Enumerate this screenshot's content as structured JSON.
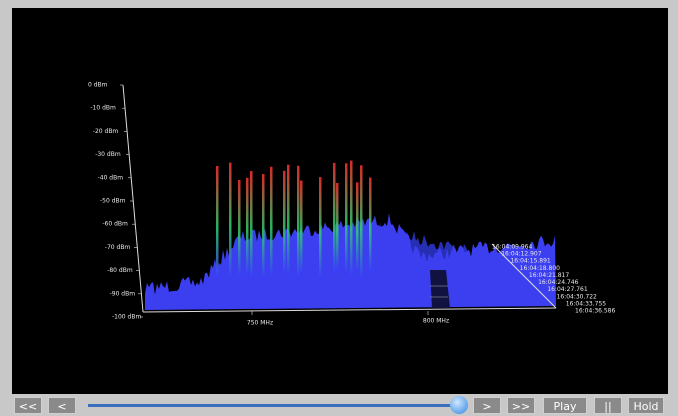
{
  "y_axis_labels": [
    "0 dBm",
    "-10 dBm",
    "-20 dBm",
    "-30 dBm",
    "-40 dBm",
    "-50 dBm",
    "-60 dBm",
    "-70 dBm",
    "-80 dBm",
    "-90 dBm",
    "-100 dBm"
  ],
  "x_axis_labels": [
    "750 MHz",
    "800 MHz"
  ],
  "time_labels": [
    "16:04:09.964",
    "16:04:12.907",
    "16:04:15.891",
    "16:04:18.800",
    "16:04:21.817",
    "16:04:24.746",
    "16:04:27.761",
    "16:04:30.722",
    "16:04:33.755",
    "16:04:36.586"
  ],
  "buttons": {
    "first": "<<",
    "prev": "<",
    "next": ">",
    "last": ">>",
    "play": "Play",
    "pause": "||",
    "hold": "Hold"
  }
}
